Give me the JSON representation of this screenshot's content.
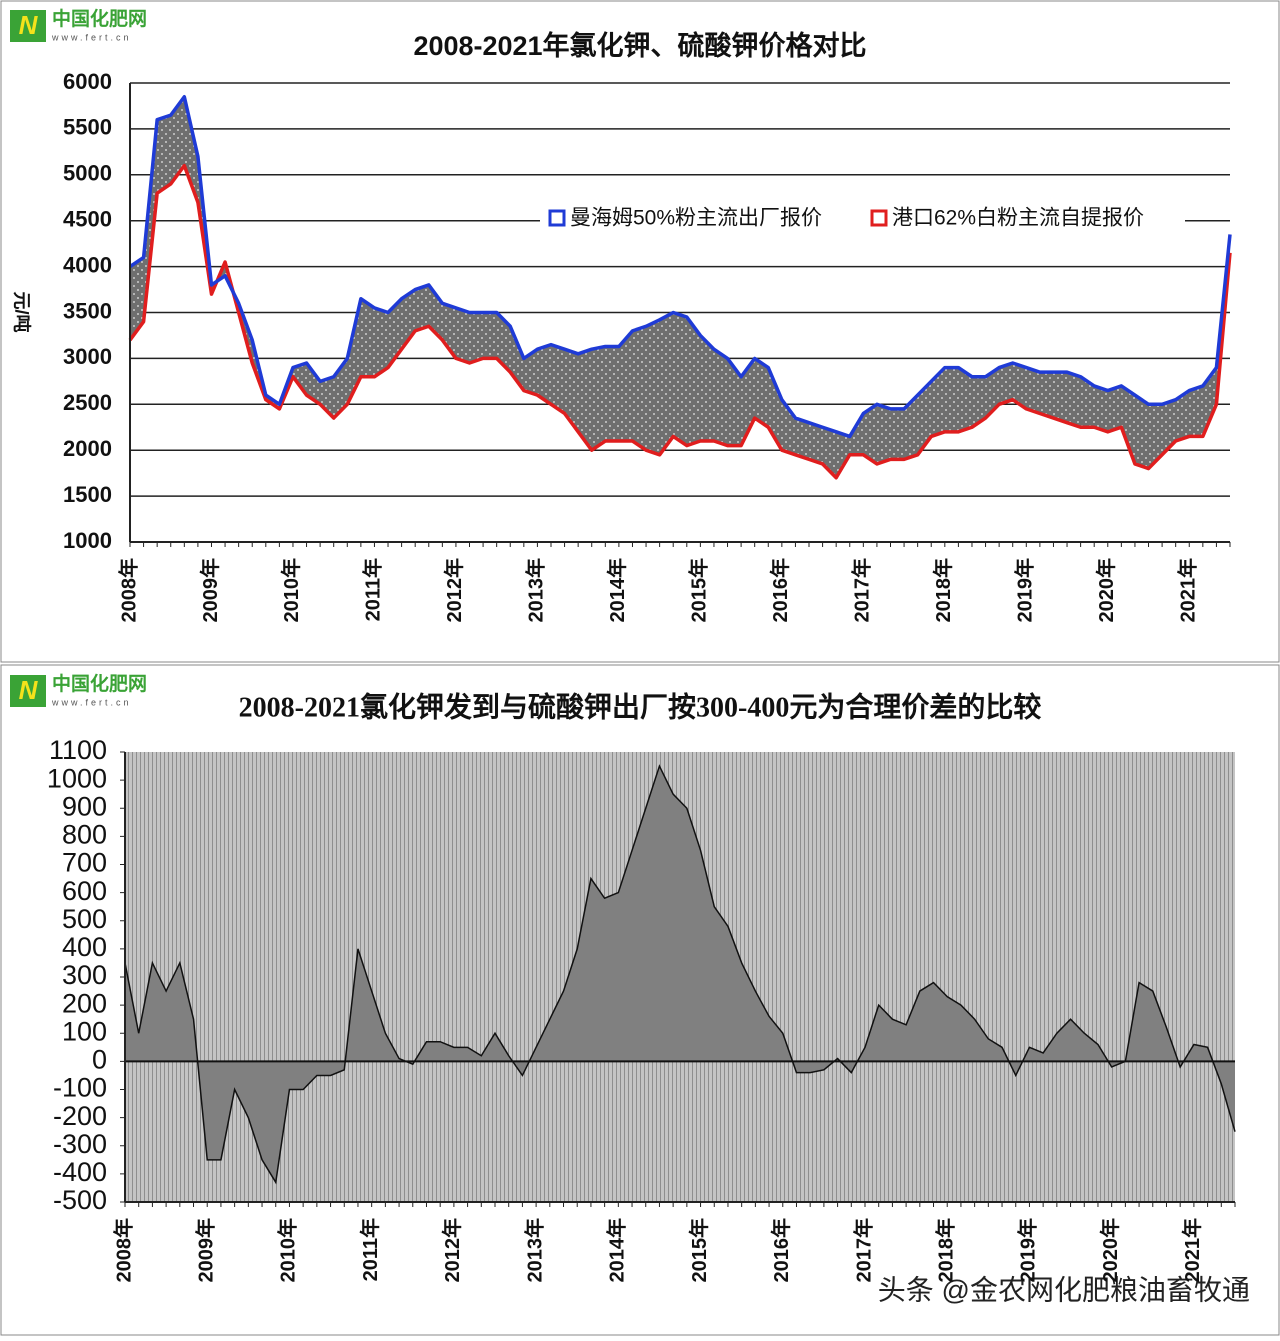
{
  "logo_name": "中国化肥网",
  "logo_url": "www.fert.cn",
  "watermark": "头条 @金农网化肥粮油畜牧通",
  "chart_data": [
    {
      "type": "line",
      "title": "2008-2021年氯化钾、硫酸钾价格对比",
      "y_label": "元/吨",
      "fill_between": true,
      "grid": true,
      "legend": "upper right",
      "categories": [
        "2008年",
        null,
        null,
        null,
        null,
        null,
        "2009年",
        null,
        null,
        null,
        null,
        null,
        "2010年",
        null,
        null,
        null,
        null,
        null,
        "2011年",
        null,
        null,
        null,
        null,
        null,
        "2012年",
        null,
        null,
        null,
        null,
        null,
        "2013年",
        null,
        null,
        null,
        null,
        null,
        "2014年",
        null,
        null,
        null,
        null,
        null,
        "2015年",
        null,
        null,
        null,
        null,
        null,
        "2016年",
        null,
        null,
        null,
        null,
        null,
        "2017年",
        null,
        null,
        null,
        null,
        null,
        "2018年",
        null,
        null,
        null,
        null,
        null,
        "2019年",
        null,
        null,
        null,
        null,
        null,
        "2020年",
        null,
        null,
        null,
        null,
        null,
        "2021年",
        null,
        null,
        null
      ],
      "ylim": [
        1000,
        6000
      ],
      "yticks": [
        1000,
        1500,
        2000,
        2500,
        3000,
        3500,
        4000,
        4500,
        5000,
        5500,
        6000
      ],
      "series": [
        {
          "name": "曼海姆50%粉主流出厂报价",
          "color": "#1f3bd6",
          "values": [
            4000,
            4100,
            5600,
            5650,
            5850,
            5200,
            3800,
            3900,
            3600,
            3200,
            2600,
            2500,
            2900,
            2950,
            2750,
            2800,
            3000,
            3650,
            3550,
            3500,
            3650,
            3750,
            3800,
            3600,
            3550,
            3500,
            3500,
            3500,
            3350,
            3000,
            3100,
            3150,
            3100,
            3050,
            3100,
            3130,
            3130,
            3300,
            3350,
            3420,
            3500,
            3450,
            3250,
            3100,
            3000,
            2800,
            3000,
            2900,
            2550,
            2350,
            2300,
            2250,
            2200,
            2150,
            2400,
            2500,
            2450,
            2450,
            2600,
            2750,
            2900,
            2900,
            2800,
            2800,
            2900,
            2950,
            2900,
            2850,
            2850,
            2850,
            2800,
            2700,
            2650,
            2700,
            2600,
            2500,
            2500,
            2550,
            2650,
            2700,
            2900,
            4350
          ]
        },
        {
          "name": "港口62%白粉主流自提报价",
          "color": "#e01e1e",
          "values": [
            3200,
            3400,
            4800,
            4900,
            5100,
            4700,
            3700,
            4050,
            3500,
            2950,
            2550,
            2450,
            2800,
            2600,
            2500,
            2350,
            2500,
            2800,
            2800,
            2900,
            3100,
            3300,
            3350,
            3200,
            3000,
            2950,
            3000,
            3000,
            2850,
            2650,
            2600,
            2500,
            2400,
            2200,
            2000,
            2100,
            2100,
            2100,
            2000,
            1950,
            2150,
            2050,
            2100,
            2100,
            2050,
            2050,
            2350,
            2250,
            2000,
            1950,
            1900,
            1850,
            1700,
            1950,
            1950,
            1850,
            1900,
            1900,
            1950,
            2150,
            2200,
            2200,
            2250,
            2350,
            2500,
            2550,
            2450,
            2400,
            2350,
            2300,
            2250,
            2250,
            2200,
            2250,
            1850,
            1800,
            1950,
            2100,
            2150,
            2150,
            2500,
            4150
          ]
        }
      ]
    },
    {
      "type": "area",
      "title": "2008-2021氯化钾发到与硫酸钾出厂按300-400元为合理价差的比较",
      "grid": false,
      "color": "#808080",
      "categories": [
        "2008年",
        null,
        null,
        null,
        null,
        null,
        "2009年",
        null,
        null,
        null,
        null,
        null,
        "2010年",
        null,
        null,
        null,
        null,
        null,
        "2011年",
        null,
        null,
        null,
        null,
        null,
        "2012年",
        null,
        null,
        null,
        null,
        null,
        "2013年",
        null,
        null,
        null,
        null,
        null,
        "2014年",
        null,
        null,
        null,
        null,
        null,
        "2015年",
        null,
        null,
        null,
        null,
        null,
        "2016年",
        null,
        null,
        null,
        null,
        null,
        "2017年",
        null,
        null,
        null,
        null,
        null,
        "2018年",
        null,
        null,
        null,
        null,
        null,
        "2019年",
        null,
        null,
        null,
        null,
        null,
        "2020年",
        null,
        null,
        null,
        null,
        null,
        "2021年",
        null,
        null,
        null
      ],
      "ylim": [
        -500,
        1100
      ],
      "yticks": [
        -500,
        -400,
        -300,
        -200,
        -100,
        0,
        100,
        200,
        300,
        400,
        500,
        600,
        700,
        800,
        900,
        1000,
        1100
      ],
      "values": [
        350,
        100,
        350,
        250,
        350,
        150,
        -350,
        -350,
        -100,
        -200,
        -350,
        -430,
        -100,
        -100,
        -50,
        -50,
        -30,
        400,
        250,
        100,
        10,
        -10,
        70,
        70,
        50,
        50,
        20,
        100,
        20,
        -50,
        50,
        150,
        250,
        400,
        650,
        580,
        600,
        750,
        900,
        1050,
        950,
        900,
        750,
        550,
        480,
        350,
        250,
        160,
        100,
        -40,
        -40,
        -30,
        10,
        -40,
        50,
        200,
        150,
        130,
        250,
        280,
        230,
        200,
        150,
        80,
        50,
        -50,
        50,
        30,
        100,
        150,
        100,
        60,
        -20,
        0,
        280,
        250,
        120,
        -20,
        60,
        50,
        -80,
        -250
      ]
    }
  ]
}
